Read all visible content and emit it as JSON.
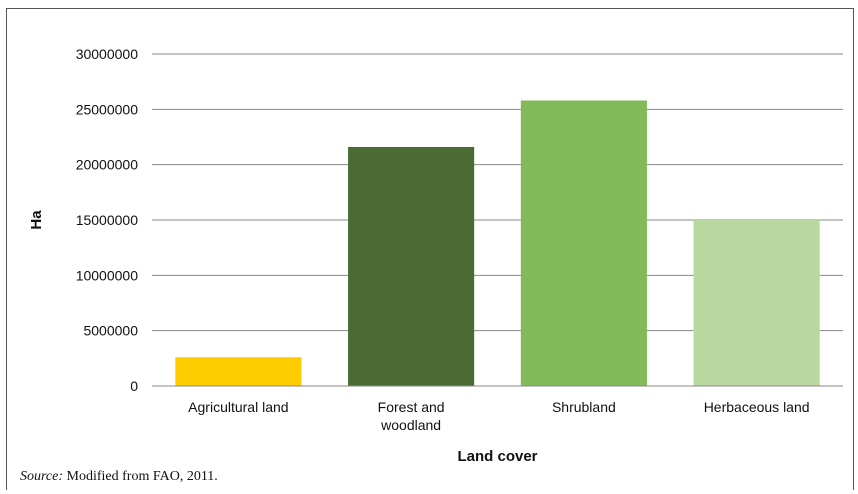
{
  "chart_data": {
    "type": "bar",
    "categories": [
      "Agricultural land",
      "Forest and woodland",
      "Shrubland",
      "Herbaceous land"
    ],
    "category_lines": [
      [
        "Agricultural land"
      ],
      [
        "Forest and",
        "woodland"
      ],
      [
        "Shrubland"
      ],
      [
        "Herbaceous land"
      ]
    ],
    "values": [
      2600000,
      21600000,
      25800000,
      15000000
    ],
    "colors": [
      "#FFCC00",
      "#4A6B33",
      "#82BA5A",
      "#B8D8A0"
    ],
    "xlabel": "Land cover",
    "ylabel": "Ha",
    "ylim": [
      0,
      30000000
    ],
    "yticks": [
      0,
      5000000,
      10000000,
      15000000,
      20000000,
      25000000,
      30000000
    ],
    "ytick_labels": [
      "0",
      "5000000",
      "10000000",
      "15000000",
      "20000000",
      "25000000",
      "30000000"
    ],
    "grid": true,
    "legend": "none"
  },
  "source": {
    "label": "Source:",
    "text": " Modified from FAO, 2011."
  }
}
